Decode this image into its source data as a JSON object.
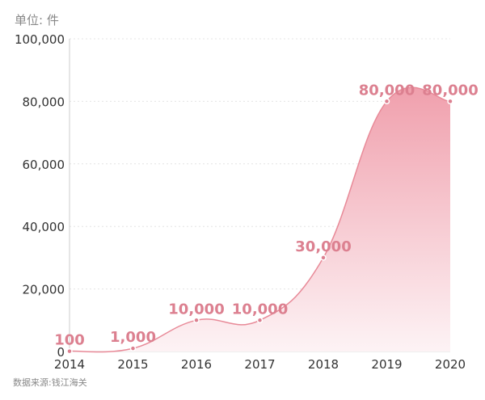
{
  "chart_data": {
    "type": "area",
    "unit_label": "单位: 件",
    "source": "数据来源:钱江海关",
    "categories": [
      "2014",
      "2015",
      "2016",
      "2017",
      "2018",
      "2019",
      "2020"
    ],
    "values": [
      100,
      1000,
      10000,
      10000,
      30000,
      80000,
      80000
    ],
    "data_labels": [
      "100",
      "1,000",
      "10,000",
      "10,000",
      "30,000",
      "80,000",
      "80,000"
    ],
    "yticks": [
      0,
      20000,
      40000,
      60000,
      80000,
      100000
    ],
    "ytick_labels": [
      "0",
      "20,000",
      "40,000",
      "60,000",
      "80,000",
      "100,000"
    ],
    "ylim": [
      0,
      100000
    ],
    "grid": "horizontal dotted",
    "colors": {
      "line": "#e88a98",
      "fill_top": "#f0a0ad",
      "fill_bottom": "#fdf3f5",
      "label": "#dc8090",
      "axis_text": "#333333"
    }
  }
}
